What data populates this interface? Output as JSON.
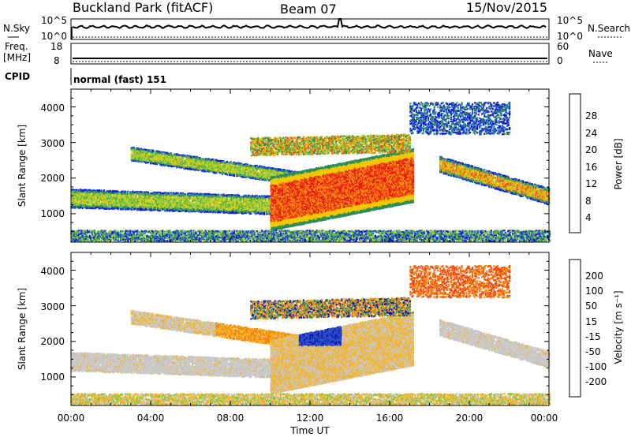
{
  "header": {
    "station": "Buckland Park (fitACF)",
    "beam": "Beam 07",
    "date": "15/Nov/2015"
  },
  "aux": {
    "nsky_label": "N.Sky",
    "nsky_hi": "10^5",
    "nsky_lo": "10^0",
    "nsearch_label": "N.Search",
    "nsearch_hi": "10^5",
    "nsearch_lo": "10^0",
    "freq_label_1": "Freq.",
    "freq_label_2": "[MHz]",
    "freq_hi": "18",
    "freq_lo": "8",
    "nave_label": "Nave",
    "nave_hi": "60",
    "nave_lo": "0",
    "cpid_label": "CPID",
    "cpid_value": "normal (fast) 151"
  },
  "chart_data": [
    {
      "type": "heatmap",
      "name": "power",
      "ylabel": "Slant Range [km]",
      "ylim": [
        200,
        4500
      ],
      "y_ticks": [
        "1000",
        "2000",
        "3000",
        "4000"
      ],
      "colorbar_label": "Power [dB]",
      "colorbar_ticks": [
        "4",
        "8",
        "12",
        "16",
        "20",
        "24",
        "28"
      ],
      "colorbar_colors": [
        "#1414e6",
        "#1e5ac8",
        "#2d8c5a",
        "#5ab446",
        "#9bd246",
        "#f0c800",
        "#f5960a",
        "#f05014",
        "#e61414"
      ],
      "colorbar_range": [
        0,
        30
      ]
    },
    {
      "type": "heatmap",
      "name": "velocity",
      "ylabel": "Slant Range [km]",
      "ylim": [
        200,
        4500
      ],
      "y_ticks": [
        "1000",
        "2000",
        "3000",
        "4000"
      ],
      "colorbar_label": "Velocity [m s⁻¹]",
      "colorbar_ticks": [
        "200",
        "100",
        "50",
        "15",
        "-15",
        "-50",
        "-100",
        "-200"
      ],
      "colorbar_colors": [
        "#1414b4",
        "#2850c8",
        "#2d8c5a",
        "#78c846",
        "#c8c8c8",
        "#f5b428",
        "#f5820f",
        "#f0460f",
        "#e61414"
      ]
    }
  ],
  "x_axis": {
    "label": "Time UT",
    "ticks": [
      "00:00",
      "04:00",
      "08:00",
      "12:00",
      "16:00",
      "20:00",
      "00:00"
    ]
  }
}
